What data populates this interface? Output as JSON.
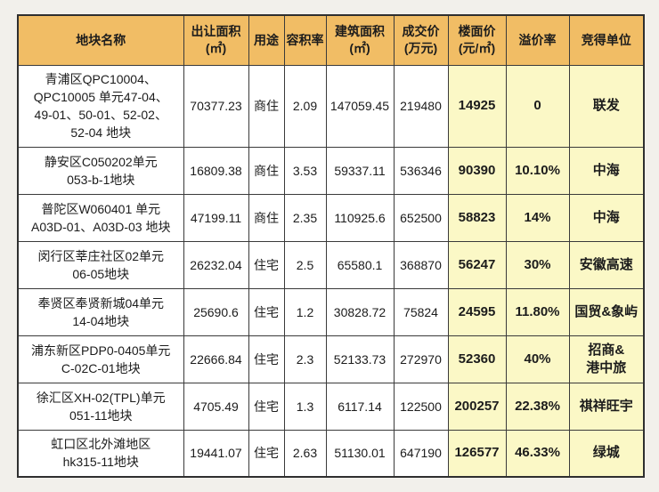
{
  "chart_data": {
    "type": "table",
    "title": "",
    "columns": [
      "地块名称",
      "出让面积\n(㎡)",
      "用途",
      "容积率",
      "建筑面积\n(㎡)",
      "成交价\n(万元)",
      "楼面价\n(元/㎡)",
      "溢价率",
      "竞得单位"
    ],
    "highlighted_columns": [
      "楼面价\n(元/㎡)",
      "溢价率",
      "竞得单位"
    ],
    "rows": [
      [
        "青浦区QPC10004、\nQPC10005 单元47-04、\n49-01、50-01、52-02、\n52-04 地块",
        "70377.23",
        "商住",
        "2.09",
        "147059.45",
        "219480",
        "14925",
        "0",
        "联发"
      ],
      [
        "静安区C050202单元\n053-b-1地块",
        "16809.38",
        "商住",
        "3.53",
        "59337.11",
        "536346",
        "90390",
        "10.10%",
        "中海"
      ],
      [
        "普陀区W060401 单元\nA03D-01、A03D-03 地块",
        "47199.11",
        "商住",
        "2.35",
        "110925.6",
        "652500",
        "58823",
        "14%",
        "中海"
      ],
      [
        "闵行区莘庄社区02单元\n06-05地块",
        "26232.04",
        "住宅",
        "2.5",
        "65580.1",
        "368870",
        "56247",
        "30%",
        "安徽高速"
      ],
      [
        "奉贤区奉贤新城04单元\n14-04地块",
        "25690.6",
        "住宅",
        "1.2",
        "30828.72",
        "75824",
        "24595",
        "11.80%",
        "国贸&象屿"
      ],
      [
        "浦东新区PDP0-0405单元\nC-02C-01地块",
        "22666.84",
        "住宅",
        "2.3",
        "52133.73",
        "272970",
        "52360",
        "40%",
        "招商&\n港中旅"
      ],
      [
        "徐汇区XH-02(TPL)单元\n051-11地块",
        "4705.49",
        "住宅",
        "1.3",
        "6117.14",
        "122500",
        "200257",
        "22.38%",
        "祺祥旺宇"
      ],
      [
        "虹口区北外滩地区\nhk315-11地块",
        "19441.07",
        "住宅",
        "2.63",
        "51130.01",
        "647190",
        "126577",
        "46.33%",
        "绿城"
      ]
    ]
  },
  "style": {
    "header_bg": "#f1bd65",
    "highlight_bg": "#fbf8c6",
    "border_color": "#3a3a3a",
    "page_bg": "#f2f0eb",
    "text_color": "#1c1c1c"
  }
}
